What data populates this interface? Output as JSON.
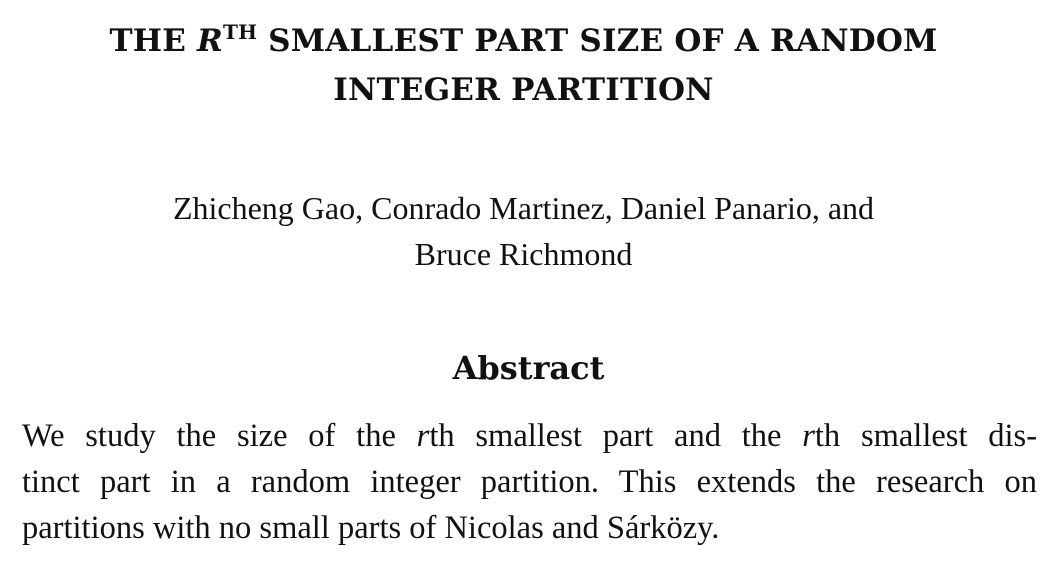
{
  "title": {
    "line1_prefix": "THE ",
    "line1_r": "R",
    "line1_sup": "TH",
    "line1_suffix": " SMALLEST PART SIZE OF A RANDOM",
    "line2": "INTEGER PARTITION"
  },
  "authors": {
    "line1": "Zhicheng Gao, Conrado Martinez, Daniel Panario, and",
    "line2": "Bruce Richmond"
  },
  "abstract": {
    "heading": "Abstract",
    "line1_a": "We study the size of the ",
    "line1_r1": "r",
    "line1_b": "th smallest part and the ",
    "line1_r2": "r",
    "line1_c": "th smallest dis-",
    "line2": "tinct part in a random integer partition. This extends the research on",
    "line3": "partitions with no small parts of Nicolas and Sárközy."
  }
}
